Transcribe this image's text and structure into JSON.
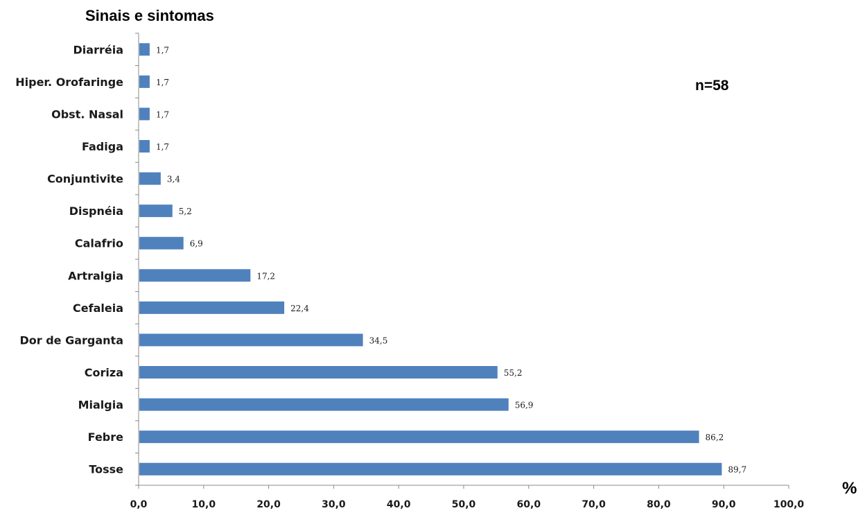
{
  "chart_data": {
    "type": "bar",
    "orientation": "horizontal",
    "title": "Sinais e sintomas",
    "annotation": "n=58",
    "xlabel": "%",
    "ylabel": "",
    "xlim": [
      0,
      100
    ],
    "x_ticks": [
      "0,0",
      "10,0",
      "20,0",
      "30,0",
      "40,0",
      "50,0",
      "60,0",
      "70,0",
      "80,0",
      "90,0",
      "100,0"
    ],
    "grid": false,
    "bar_color": "#4f81bd",
    "categories": [
      "Diarréia",
      "Hiper.  Orofaringe",
      "Obst. Nasal",
      "Fadiga",
      "Conjuntivite",
      "Dispnéia",
      "Calafrio",
      "Artralgia",
      "Cefaleia",
      "Dor de Garganta",
      "Coriza",
      "Mialgia",
      "Febre",
      "Tosse"
    ],
    "values": [
      1.7,
      1.7,
      1.7,
      1.7,
      3.4,
      5.2,
      6.9,
      17.2,
      22.4,
      34.5,
      55.2,
      56.9,
      86.2,
      89.7
    ],
    "value_labels": [
      "1,7",
      "1,7",
      "1,7",
      "1,7",
      "3,4",
      "5,2",
      "6,9",
      "17,2",
      "22,4",
      "34,5",
      "55,2",
      "56,9",
      "86,2",
      "89,7"
    ]
  }
}
